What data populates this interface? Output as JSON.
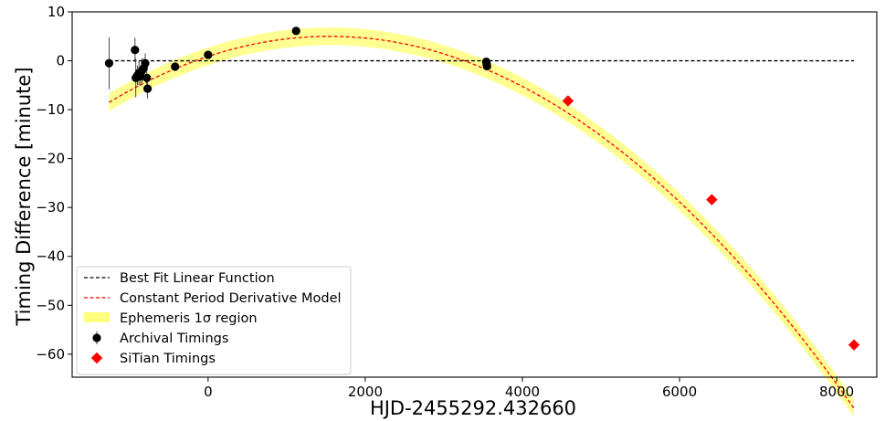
{
  "chart_data": {
    "type": "scatter",
    "xlabel": "HJD-2455292.432660",
    "ylabel": "Timing Difference [minute]",
    "xlim": [
      -1730,
      8510
    ],
    "ylim": [
      -64.7,
      10
    ],
    "x_ticks": [
      0,
      2000,
      4000,
      6000,
      8000
    ],
    "x_tick_labels": [
      "0",
      "2000",
      "4000",
      "6000",
      "8000"
    ],
    "y_ticks": [
      10,
      0,
      -10,
      -20,
      -30,
      -40,
      -50,
      -60
    ],
    "y_tick_labels": [
      "10",
      "0",
      "−10",
      "−20",
      "−30",
      "−40",
      "−50",
      "−60"
    ],
    "grid": false,
    "legend_position": "lower-left",
    "series": [
      {
        "name": "Best Fit Linear Function",
        "kind": "line",
        "style": "dashed",
        "color": "#000000",
        "x": [
          -1260,
          8220
        ],
        "y": [
          0,
          0
        ]
      },
      {
        "name": "Constant Period Derivative Model",
        "kind": "curve",
        "style": "dashed",
        "color": "#ff0000",
        "quadratic": {
          "vertex_x": 1550,
          "vertex_y": 5.0,
          "x_zero": 3260
        },
        "x_range": [
          -1260,
          8220
        ]
      },
      {
        "name": "Ephemeris 1σ region",
        "kind": "band",
        "color": "#ffff7f",
        "half_width_minutes": 1.8
      },
      {
        "name": "Archival Timings",
        "kind": "errorbar",
        "color": "#000000",
        "points": [
          {
            "x": -1260,
            "y": -0.5,
            "err": 5.3
          },
          {
            "x": -930,
            "y": 2.2,
            "err": 2.5
          },
          {
            "x": -920,
            "y": -3.5,
            "err": 4.0
          },
          {
            "x": -900,
            "y": -3.0,
            "err": 2.0
          },
          {
            "x": -880,
            "y": -2.5,
            "err": 2.5
          },
          {
            "x": -860,
            "y": -3.2,
            "err": 2.0
          },
          {
            "x": -840,
            "y": -2.0,
            "err": 2.5
          },
          {
            "x": -820,
            "y": -1.5,
            "err": 2.0
          },
          {
            "x": -800,
            "y": -0.5,
            "err": 2.0
          },
          {
            "x": -780,
            "y": -3.5,
            "err": 2.0
          },
          {
            "x": -770,
            "y": -5.7,
            "err": 2.0
          },
          {
            "x": -420,
            "y": -1.2,
            "err": 0
          },
          {
            "x": 0,
            "y": 1.2,
            "err": 0
          },
          {
            "x": 1120,
            "y": 6.1,
            "err": 0
          },
          {
            "x": 3540,
            "y": -0.2,
            "err": 0
          },
          {
            "x": 3545,
            "y": -0.7,
            "err": 0
          },
          {
            "x": 3550,
            "y": -1.1,
            "err": 0
          }
        ]
      },
      {
        "name": "SiTian Timings",
        "kind": "marker",
        "marker": "diamond",
        "color": "#ff0000",
        "x": [
          4580,
          6410,
          8220
        ],
        "y": [
          -8.2,
          -28.4,
          -58.1
        ]
      }
    ]
  }
}
